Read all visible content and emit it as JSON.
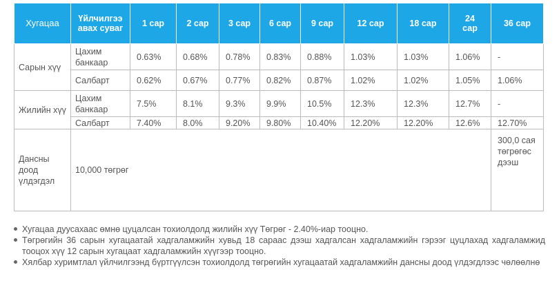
{
  "table": {
    "headers": [
      "Хугацаа",
      "Үйлчилгээ авах суваг",
      "1 сар",
      "2 сар",
      "3 сар",
      "6 сар",
      "9 сар",
      "12 сар",
      "18 сар",
      "24 сар",
      "36 сар"
    ],
    "sections": [
      {
        "label": "Сарын хүү",
        "rows": [
          {
            "channel": "Цахим банкаар",
            "values": [
              "0.63%",
              "0.68%",
              "0.78%",
              "0.83%",
              "0.88%",
              "1.03%",
              "1.03%",
              "1.06%",
              "-"
            ]
          },
          {
            "channel": "Салбарт",
            "values": [
              "0.62%",
              "0.67%",
              "0.77%",
              "0.82%",
              "0.87%",
              "1.02%",
              "1.02%",
              "1.05%",
              "1.06%"
            ]
          }
        ]
      },
      {
        "label": "Жилийн хүү",
        "rows": [
          {
            "channel": "Цахим банкаар",
            "values": [
              "7.5%",
              "8.1%",
              "9.3%",
              "9.9%",
              "10.5%",
              "12.3%",
              "12.3%",
              "12.7%",
              "-"
            ]
          },
          {
            "channel": "Салбарт",
            "values": [
              "7.40%",
              "8.0%",
              "9.20%",
              "9.80%",
              "10.40%",
              "12.20%",
              "12.20%",
              "12.6%",
              "12.70%"
            ]
          }
        ]
      }
    ],
    "balance": {
      "label": "Дансны доод үлдэгдэл",
      "value": "10,000 төгрөг",
      "value_36": "300,0 сая төгрөгөс дээш"
    }
  },
  "notes": [
    "Хугацаа дуусахаас өмнө цуцалсан тохиолдолд жилийн хүү Төгрөг - 2.40%-иар тооцно.",
    "Төгрөгийн 36 сарын хугацаатай хадгаламжийн хувьд 18 сараас дээш хадгалсан хадгаламжийн гэрээг цуцлахад хадгаламжид тооцох хүү 12 сарын хугацаат хадгаламжийн хүүгээр тооцно.",
    "Хялбар хуримтлал үйлчилгээнд бүртгүүлсэн тохиолдолд төгрөгийн хугацаатай хадгаламжийн дансны доод үлдэгдлээс чөлөөлнө"
  ],
  "colors": {
    "header_bg": "#1ea7e6",
    "header_text": "#ffffff",
    "text": "#555555",
    "border": "#bbbbbb"
  }
}
